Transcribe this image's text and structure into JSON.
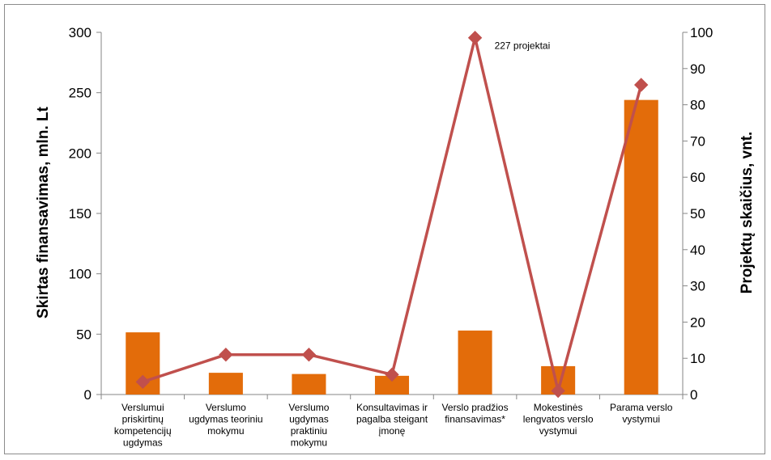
{
  "chart_data": {
    "type": "bar+line",
    "categories": [
      [
        "Verslumui",
        "priskirtinų",
        "kompetencijų",
        "ugdymas"
      ],
      [
        "Verslumo",
        "ugdymas teoriniu",
        "mokymu"
      ],
      [
        "Verslumo",
        "ugdymas",
        "praktiniu",
        "mokymu"
      ],
      [
        "Konsultavimas ir",
        "pagalba steigant",
        "įmonę"
      ],
      [
        "Verslo pradžios",
        "finansavimas*"
      ],
      [
        "Mokestinės",
        "lengvatos verslo",
        "vystymui"
      ],
      [
        "Parama verslo",
        "vystymui"
      ]
    ],
    "series": [
      {
        "type": "bar",
        "axis": "left",
        "color": "#e36c0a",
        "values": [
          51.5,
          18,
          17,
          15.5,
          53,
          23.5,
          244
        ]
      },
      {
        "type": "line",
        "axis": "right",
        "color": "#c0504d",
        "marker": "diamond",
        "values": [
          3.5,
          11,
          11,
          5.5,
          98.5,
          1,
          85.5
        ]
      }
    ],
    "ylabel": "Skirtas finansavimas, mln. Lt",
    "y2label": "Projektų skaičius, vnt.",
    "ylim": [
      0,
      300
    ],
    "yticks": [
      0,
      50,
      100,
      150,
      200,
      250,
      300
    ],
    "y2lim": [
      0,
      100
    ],
    "y2ticks": [
      0,
      10,
      20,
      30,
      40,
      50,
      60,
      70,
      80,
      90,
      100
    ],
    "annotations": [
      {
        "text": "227 projektai",
        "category_index": 4
      }
    ],
    "grid": false,
    "legend": "none"
  }
}
